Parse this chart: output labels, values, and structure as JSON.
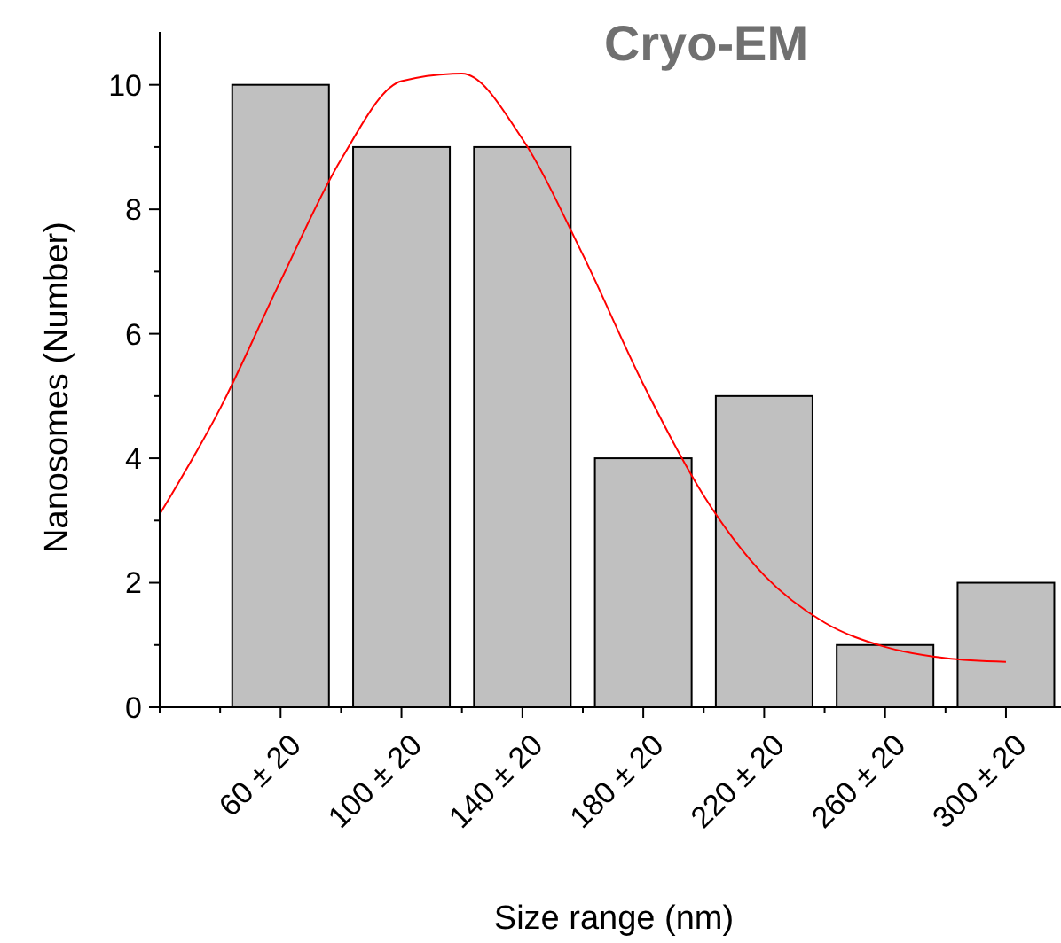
{
  "chart_data": {
    "type": "bar",
    "title": "Cryo-EM",
    "xlabel": "Size range (nm)",
    "ylabel": "Nanosomes (Number)",
    "categories": [
      null,
      null,
      "60 ± 20",
      null,
      "100 ± 20",
      null,
      "140 ± 20",
      null,
      "180 ± 20",
      null,
      "220 ± 20",
      null,
      "260 ± 20",
      null,
      "300 ± 20"
    ],
    "ylim": [
      0,
      10.85
    ],
    "yticks": [
      0,
      {
        "value": 1,
        "label": null
      },
      2,
      {
        "value": 3,
        "label": null
      },
      4,
      {
        "value": 5,
        "label": null
      },
      6,
      {
        "value": 7,
        "label": null
      },
      8,
      {
        "value": 9,
        "label": null
      },
      10
    ],
    "grid": false,
    "series": [
      {
        "color": "#c0c0c0",
        "values": [
          null,
          null,
          10,
          null,
          9,
          null,
          9,
          null,
          4,
          null,
          5,
          null,
          1,
          null,
          2
        ]
      },
      {
        "type": "line",
        "color": "#ff0000",
        "values": [
          3.1,
          4.8,
          6.85,
          8.8,
          10.06,
          10.18,
          9.13,
          7.27,
          5.19,
          3.4,
          2.12,
          1.36,
          0.97,
          0.79,
          0.73
        ]
      }
    ]
  }
}
